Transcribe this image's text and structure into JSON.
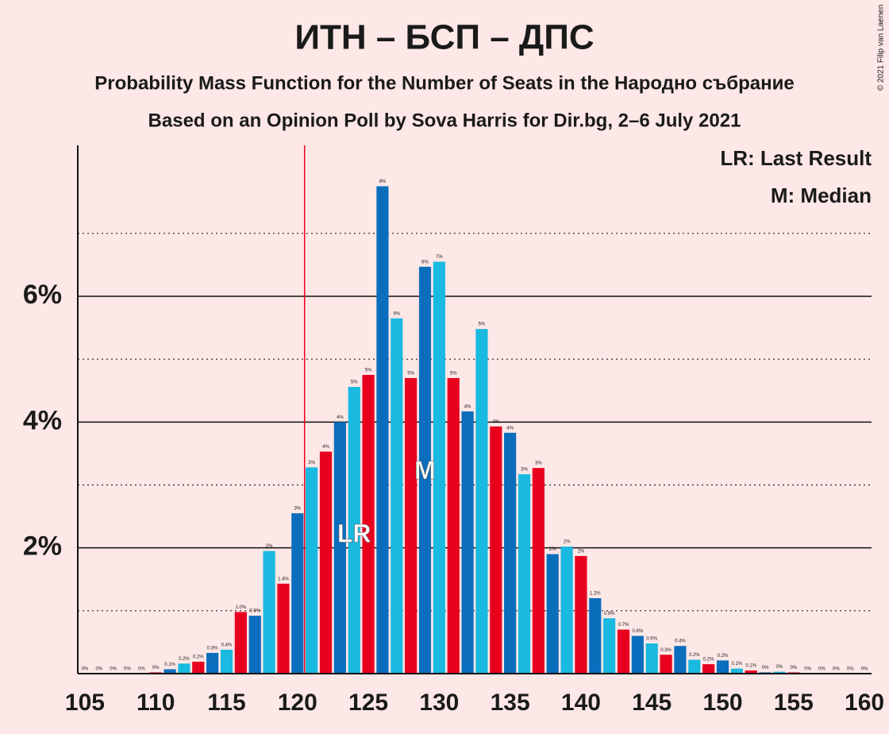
{
  "chart_data": {
    "type": "bar",
    "title": "ИТН – БСП – ДПС",
    "subtitle": "Probability Mass Function for the Number of Seats in the Народно събрание",
    "subtitle2": "Based on an Opinion Poll by Sova Harris for Dir.bg, 2–6 July 2021",
    "copyright": "© 2021 Filip van Laenen",
    "legend": [
      "LR: Last Result",
      "M: Median"
    ],
    "legend_position": "upper right",
    "x": [
      105,
      106,
      107,
      108,
      109,
      110,
      111,
      112,
      113,
      114,
      115,
      116,
      117,
      118,
      119,
      120,
      121,
      122,
      123,
      124,
      125,
      126,
      127,
      128,
      129,
      130,
      131,
      132,
      133,
      134,
      135,
      136,
      137,
      138,
      139,
      140,
      141,
      142,
      143,
      144,
      145,
      146,
      147,
      148,
      149,
      150,
      151,
      152,
      153,
      154,
      155,
      156,
      157,
      158,
      159,
      160
    ],
    "values": [
      0,
      0,
      0,
      0,
      0,
      0.02,
      0.07,
      0.16,
      0.19,
      0.33,
      0.38,
      0.98,
      0.92,
      1.95,
      1.43,
      2.55,
      3.28,
      3.53,
      4.0,
      4.56,
      4.75,
      7.75,
      5.65,
      4.7,
      6.47,
      6.55,
      4.7,
      4.17,
      5.48,
      3.93,
      3.83,
      3.17,
      3.27,
      1.9,
      2.02,
      1.87,
      1.2,
      0.88,
      0.7,
      0.6,
      0.48,
      0.3,
      0.44,
      0.22,
      0.15,
      0.21,
      0.08,
      0.05,
      0.02,
      0.03,
      0.02,
      0,
      0,
      0,
      0,
      0
    ],
    "value_labels": [
      "0%",
      "0%",
      "0%",
      "0%",
      "0%",
      "0%",
      "0.1%",
      "0.2%",
      "0.2%",
      "0.3%",
      "0.4%",
      "1.0%",
      "0.9%",
      "2%",
      "1.4%",
      "3%",
      "3%",
      "4%",
      "4%",
      "5%",
      "5%",
      "8%",
      "6%",
      "5%",
      "6%",
      "7%",
      "5%",
      "4%",
      "5%",
      "4%",
      "4%",
      "3%",
      "3%",
      "2%",
      "2%",
      "2%",
      "1.2%",
      "0.9%",
      "0.7%",
      "0.6%",
      "0.5%",
      "0.3%",
      "0.4%",
      "0.2%",
      "0.2%",
      "0.2%",
      "0.1%",
      "0.1%",
      "0%",
      "0%",
      "0%",
      "0%",
      "0%",
      "0%",
      "0%",
      "0%"
    ],
    "colors": [
      "#0a6ebd",
      "#19b9e0",
      "#e8001f",
      "#0a6ebd",
      "#19b9e0",
      "#e8001f",
      "#0a6ebd",
      "#19b9e0",
      "#e8001f",
      "#0a6ebd",
      "#19b9e0",
      "#e8001f",
      "#0a6ebd",
      "#19b9e0",
      "#e8001f",
      "#0a6ebd",
      "#19b9e0",
      "#e8001f",
      "#0a6ebd",
      "#19b9e0",
      "#e8001f",
      "#0a6ebd",
      "#19b9e0",
      "#e8001f",
      "#0a6ebd",
      "#19b9e0",
      "#e8001f",
      "#0a6ebd",
      "#19b9e0",
      "#e8001f",
      "#0a6ebd",
      "#19b9e0",
      "#e8001f",
      "#0a6ebd",
      "#19b9e0",
      "#e8001f",
      "#0a6ebd",
      "#19b9e0",
      "#e8001f",
      "#0a6ebd",
      "#19b9e0",
      "#e8001f",
      "#0a6ebd",
      "#19b9e0",
      "#e8001f",
      "#0a6ebd",
      "#19b9e0",
      "#e8001f",
      "#0a6ebd",
      "#19b9e0",
      "#e8001f",
      "#0a6ebd",
      "#19b9e0",
      "#e8001f",
      "#0a6ebd",
      "#19b9e0"
    ],
    "xlim": [
      104.5,
      160.5
    ],
    "xticks": [
      105,
      110,
      115,
      120,
      125,
      130,
      135,
      140,
      145,
      150,
      155,
      160
    ],
    "ylim": [
      0,
      8.4
    ],
    "yticks": [
      {
        "value": 2,
        "label": "2%"
      },
      {
        "value": 4,
        "label": "4%"
      },
      {
        "value": 6,
        "label": "6%"
      }
    ],
    "minor_yticks": [
      1,
      3,
      5,
      7
    ],
    "grid": true,
    "last_result": 120.5,
    "last_result_color": "#e8001f",
    "annotations": [
      {
        "text": "LR",
        "x": 124,
        "y": 2.2
      },
      {
        "text": "M",
        "x": 129,
        "y": 3.2
      }
    ]
  }
}
